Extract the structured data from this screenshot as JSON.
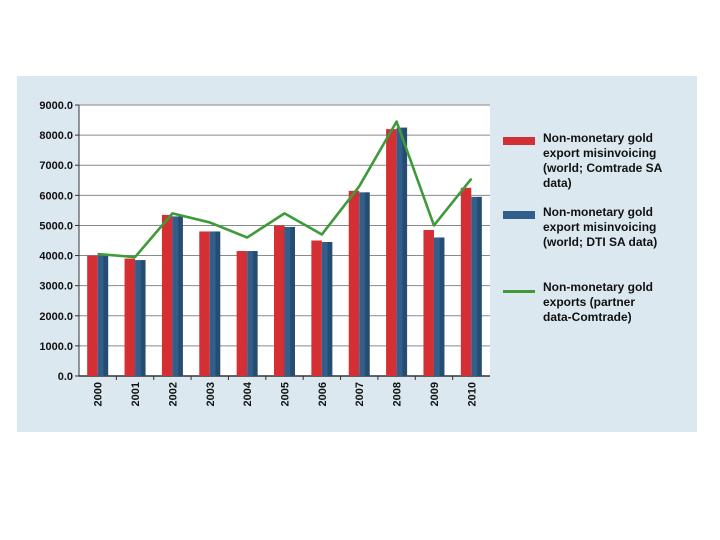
{
  "chart_data": {
    "type": "bar",
    "categories": [
      "2000",
      "2001",
      "2002",
      "2003",
      "2004",
      "2005",
      "2006",
      "2007",
      "2008",
      "2009",
      "2010"
    ],
    "series": [
      {
        "name": "Non-monetary gold export misinvoicing (world; Comtrade SA data)",
        "kind": "bar",
        "color": "#d32f35",
        "values": [
          4000,
          3900,
          5350,
          4800,
          4150,
          5000,
          4500,
          6150,
          8200,
          4850,
          6250
        ]
      },
      {
        "name": "Non-monetary gold export misinvoicing (world; DTI SA data)",
        "kind": "bar",
        "color": "#2f5f8a",
        "values": [
          4000,
          3850,
          5300,
          4800,
          4150,
          4950,
          4450,
          6100,
          8250,
          4600,
          5950
        ]
      },
      {
        "name": "Non-monetary gold exports (partner data-Comtrade)",
        "kind": "line",
        "color": "#3f9a3a",
        "values": [
          4050,
          3950,
          5400,
          5100,
          4600,
          5400,
          4700,
          6300,
          8450,
          5000,
          6550
        ]
      }
    ],
    "ylim": [
      0,
      9000
    ],
    "yticks": [
      "0.0",
      "1000.0",
      "2000.0",
      "3000.0",
      "4000.0",
      "5000.0",
      "6000.0",
      "7000.0",
      "8000.0",
      "9000.0"
    ],
    "grid": true,
    "legend_position": "right",
    "title": "",
    "xlabel": "",
    "ylabel": ""
  },
  "legend": [
    {
      "lines": [
        "Non-monetary gold",
        "export misinvoicing",
        "(world; Comtrade SA",
        "data)"
      ]
    },
    {
      "lines": [
        "Non-monetary gold",
        "export misinvoicing",
        "(world; DTI SA data)"
      ]
    },
    {
      "lines": [
        "Non-monetary gold",
        "exports (partner",
        "data-Comtrade)"
      ]
    }
  ]
}
